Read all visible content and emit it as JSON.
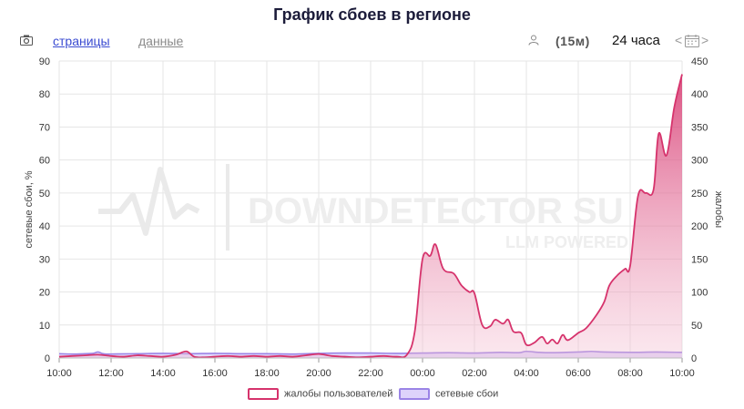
{
  "title": "График сбоев в регионе",
  "toolbar": {
    "camera_icon": "camera-icon",
    "pages_label": "страницы",
    "data_label": "данные",
    "user_icon": "user-icon",
    "interval_label": "(15м)",
    "period_label": "24 часа",
    "prev_label": "<",
    "next_label": ">",
    "calendar_icon": "calendar-icon"
  },
  "watermark": {
    "main": "DOWNDETECTOR SU",
    "sub": "LLM POWERED"
  },
  "chart_data": {
    "type": "area",
    "ylabel_left": "сетевые сбои, %",
    "ylabel_right": "жалобы",
    "ylim_left": [
      0,
      90
    ],
    "ylim_right": [
      0,
      450
    ],
    "yticks_left": [
      "0",
      "10",
      "20",
      "30",
      "40",
      "50",
      "60",
      "70",
      "80",
      "90"
    ],
    "yticks_right": [
      "0",
      "50",
      "100",
      "150",
      "200",
      "250",
      "300",
      "350",
      "400",
      "450"
    ],
    "xlim": [
      10,
      34
    ],
    "xticks": [
      {
        "x": 10,
        "label": "10:00"
      },
      {
        "x": 12,
        "label": "12:00"
      },
      {
        "x": 14,
        "label": "14:00"
      },
      {
        "x": 16,
        "label": "16:00"
      },
      {
        "x": 18,
        "label": "18:00"
      },
      {
        "x": 20,
        "label": "20:00"
      },
      {
        "x": 22,
        "label": "22:00"
      },
      {
        "x": 24,
        "label": "00:00"
      },
      {
        "x": 26,
        "label": "02:00"
      },
      {
        "x": 28,
        "label": "04:00"
      },
      {
        "x": 30,
        "label": "06:00"
      },
      {
        "x": 32,
        "label": "08:00"
      },
      {
        "x": 34,
        "label": "10:00"
      }
    ],
    "grid": true,
    "legend_position": "bottom",
    "series": [
      {
        "name": "жалобы пользователей",
        "axis": "right",
        "color": "#d6336c",
        "points": [
          [
            10.0,
            2
          ],
          [
            10.5,
            3
          ],
          [
            11.0,
            4
          ],
          [
            11.5,
            5
          ],
          [
            12.0,
            3
          ],
          [
            12.5,
            2
          ],
          [
            13.0,
            4
          ],
          [
            13.5,
            3
          ],
          [
            14.0,
            2
          ],
          [
            14.5,
            5
          ],
          [
            14.9,
            10
          ],
          [
            15.2,
            2
          ],
          [
            15.6,
            1
          ],
          [
            16.0,
            2
          ],
          [
            16.5,
            3
          ],
          [
            17.0,
            2
          ],
          [
            17.5,
            3
          ],
          [
            18.0,
            2
          ],
          [
            18.5,
            3
          ],
          [
            19.0,
            2
          ],
          [
            19.5,
            4
          ],
          [
            20.0,
            6
          ],
          [
            20.5,
            3
          ],
          [
            21.0,
            2
          ],
          [
            21.5,
            1
          ],
          [
            22.0,
            2
          ],
          [
            22.5,
            3
          ],
          [
            23.0,
            2
          ],
          [
            23.4,
            5
          ],
          [
            23.7,
            40
          ],
          [
            24.0,
            150
          ],
          [
            24.3,
            155
          ],
          [
            24.5,
            172
          ],
          [
            24.8,
            135
          ],
          [
            25.2,
            128
          ],
          [
            25.5,
            110
          ],
          [
            25.8,
            100
          ],
          [
            26.0,
            98
          ],
          [
            26.3,
            50
          ],
          [
            26.6,
            48
          ],
          [
            26.8,
            58
          ],
          [
            27.1,
            52
          ],
          [
            27.3,
            58
          ],
          [
            27.5,
            40
          ],
          [
            27.8,
            38
          ],
          [
            28.0,
            20
          ],
          [
            28.3,
            23
          ],
          [
            28.6,
            32
          ],
          [
            28.8,
            22
          ],
          [
            29.0,
            28
          ],
          [
            29.2,
            22
          ],
          [
            29.4,
            35
          ],
          [
            29.6,
            27
          ],
          [
            30.0,
            38
          ],
          [
            30.3,
            45
          ],
          [
            30.7,
            65
          ],
          [
            31.0,
            85
          ],
          [
            31.2,
            110
          ],
          [
            31.5,
            125
          ],
          [
            31.8,
            135
          ],
          [
            32.0,
            140
          ],
          [
            32.3,
            245
          ],
          [
            32.6,
            250
          ],
          [
            32.9,
            255
          ],
          [
            33.1,
            340
          ],
          [
            33.4,
            307
          ],
          [
            33.7,
            380
          ],
          [
            34.0,
            430
          ]
        ]
      },
      {
        "name": "сетевые сбои",
        "axis": "left",
        "color": "#9b84e6",
        "points": [
          [
            10.0,
            1.3
          ],
          [
            10.5,
            1.2
          ],
          [
            11.0,
            1.3
          ],
          [
            11.3,
            1.4
          ],
          [
            11.5,
            1.8
          ],
          [
            11.7,
            1.3
          ],
          [
            12.0,
            1.2
          ],
          [
            13.0,
            1.3
          ],
          [
            14.0,
            1.4
          ],
          [
            15.0,
            1.3
          ],
          [
            16.0,
            1.4
          ],
          [
            17.0,
            1.3
          ],
          [
            18.0,
            1.3
          ],
          [
            19.0,
            1.2
          ],
          [
            20.0,
            1.4
          ],
          [
            21.0,
            1.5
          ],
          [
            22.0,
            1.5
          ],
          [
            23.0,
            1.4
          ],
          [
            24.0,
            1.5
          ],
          [
            25.0,
            1.6
          ],
          [
            26.0,
            1.5
          ],
          [
            27.0,
            1.7
          ],
          [
            27.7,
            1.6
          ],
          [
            28.0,
            2.0
          ],
          [
            28.5,
            1.7
          ],
          [
            29.0,
            1.6
          ],
          [
            30.0,
            1.8
          ],
          [
            30.5,
            2.0
          ],
          [
            31.0,
            1.8
          ],
          [
            32.0,
            1.7
          ],
          [
            33.0,
            1.8
          ],
          [
            34.0,
            1.7
          ]
        ]
      }
    ]
  }
}
